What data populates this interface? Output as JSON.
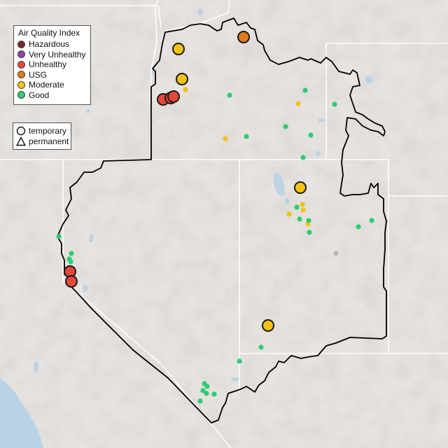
{
  "legend": {
    "title": "Air Quality Index",
    "categories": [
      {
        "label": "Hazardous",
        "color": "#7e2a2a"
      },
      {
        "label": "Very Unhealthy",
        "color": "#8e44ad"
      },
      {
        "label": "Unhealthy",
        "color": "#e8473c"
      },
      {
        "label": "USG",
        "color": "#e07b1a"
      },
      {
        "label": "Moderate",
        "color": "#f5c211"
      },
      {
        "label": "Good",
        "color": "#2ecc71"
      }
    ]
  },
  "shape_legend": {
    "items": [
      {
        "label": "temporary",
        "icon": "circle-icon"
      },
      {
        "label": "permanent",
        "icon": "triangle-icon"
      }
    ]
  },
  "colors": {
    "terrain": "#e6e3e0",
    "water": "#b9d3e6",
    "state_border": "#ffffff",
    "region_outline": "#000000",
    "no_data": "#b8b8b8"
  },
  "monitors": [
    {
      "category": "USG",
      "type": "temporary",
      "size": "large"
    },
    {
      "category": "Moderate",
      "type": "temporary",
      "size": "large"
    },
    {
      "category": "Moderate",
      "type": "temporary",
      "size": "large"
    },
    {
      "category": "Unhealthy",
      "type": "temporary",
      "size": "large"
    },
    {
      "category": "Unhealthy",
      "type": "temporary",
      "size": "large"
    },
    {
      "category": "Unhealthy",
      "type": "temporary",
      "size": "large"
    },
    {
      "category": "Moderate",
      "type": "temporary",
      "size": "large"
    },
    {
      "category": "Unhealthy",
      "type": "temporary",
      "size": "large"
    },
    {
      "category": "Unhealthy",
      "type": "temporary",
      "size": "large"
    },
    {
      "category": "Moderate",
      "type": "temporary",
      "size": "large"
    },
    {
      "category": "Moderate",
      "type": "permanent",
      "size": "small"
    },
    {
      "category": "Moderate",
      "type": "permanent",
      "size": "small"
    },
    {
      "category": "Moderate",
      "type": "permanent",
      "size": "small"
    },
    {
      "category": "Moderate",
      "type": "permanent",
      "size": "small"
    },
    {
      "category": "Moderate",
      "type": "permanent",
      "size": "small"
    },
    {
      "category": "Moderate",
      "type": "permanent",
      "size": "small"
    },
    {
      "category": "Moderate",
      "type": "permanent",
      "size": "small"
    },
    {
      "category": "Good",
      "type": "permanent",
      "size": "small"
    },
    {
      "category": "Good",
      "type": "permanent",
      "size": "small"
    },
    {
      "category": "Good",
      "type": "permanent",
      "size": "small"
    },
    {
      "category": "Good",
      "type": "permanent",
      "size": "small"
    },
    {
      "category": "Good",
      "type": "permanent",
      "size": "small"
    },
    {
      "category": "Good",
      "type": "permanent",
      "size": "small"
    },
    {
      "category": "Good",
      "type": "permanent",
      "size": "small"
    },
    {
      "category": "Good",
      "type": "permanent",
      "size": "small"
    },
    {
      "category": "Good",
      "type": "permanent",
      "size": "small"
    },
    {
      "category": "Good",
      "type": "permanent",
      "size": "small"
    },
    {
      "category": "Good",
      "type": "permanent",
      "size": "small"
    },
    {
      "category": "Good",
      "type": "permanent",
      "size": "small"
    },
    {
      "category": "Good",
      "type": "permanent",
      "size": "small"
    },
    {
      "category": "Good",
      "type": "permanent",
      "size": "small"
    },
    {
      "category": "Good",
      "type": "permanent",
      "size": "small"
    },
    {
      "category": "Good",
      "type": "permanent",
      "size": "small"
    },
    {
      "category": "Good",
      "type": "permanent",
      "size": "small"
    },
    {
      "category": "Good",
      "type": "permanent",
      "size": "small"
    },
    {
      "category": "Good",
      "type": "permanent",
      "size": "small"
    },
    {
      "category": "Good",
      "type": "permanent",
      "size": "small"
    },
    {
      "category": "Good",
      "type": "permanent",
      "size": "small"
    },
    {
      "category": "Good",
      "type": "permanent",
      "size": "small"
    },
    {
      "category": "Good",
      "type": "permanent",
      "size": "small"
    },
    {
      "category": "Good",
      "type": "permanent",
      "size": "small"
    },
    {
      "category": "Good",
      "type": "permanent",
      "size": "small"
    },
    {
      "category": "No data",
      "type": "permanent",
      "size": "small"
    },
    {
      "category": "No data",
      "type": "permanent",
      "size": "small"
    }
  ]
}
